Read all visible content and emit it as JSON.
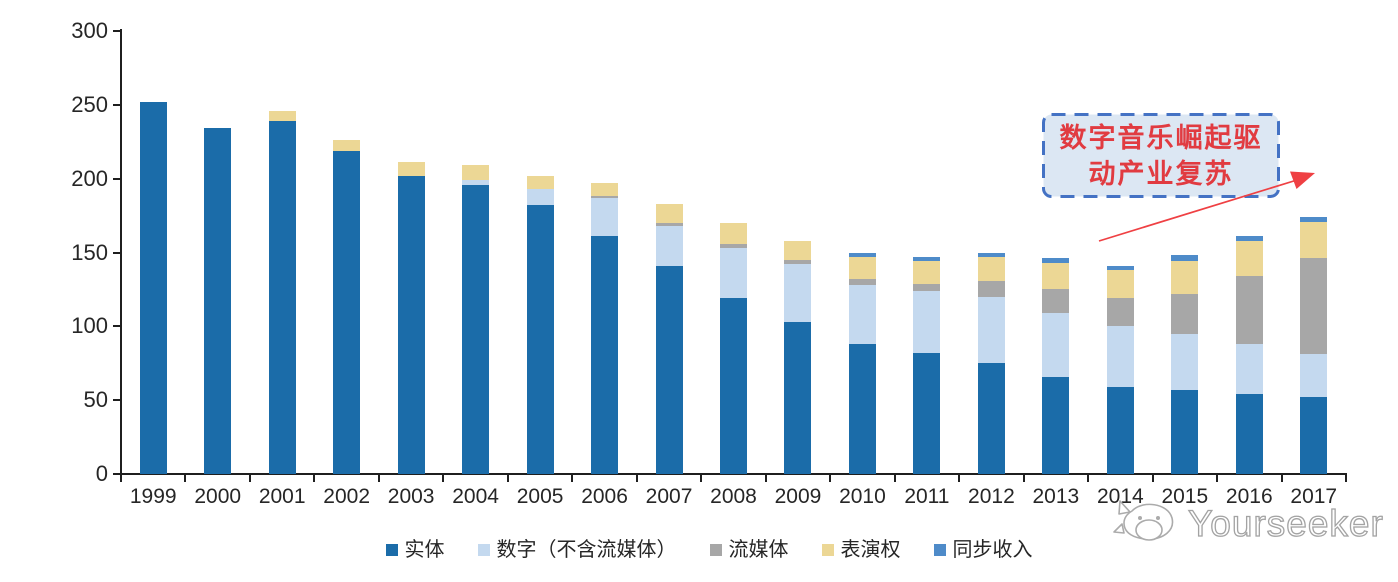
{
  "chart_data": {
    "type": "bar",
    "stacked": true,
    "title": "",
    "xlabel": "",
    "ylabel": "",
    "ylim": [
      0,
      300
    ],
    "yticks": [
      0,
      50,
      100,
      150,
      200,
      250,
      300
    ],
    "grid": false,
    "legend_position": "bottom",
    "categories": [
      "1999",
      "2000",
      "2001",
      "2002",
      "2003",
      "2004",
      "2005",
      "2006",
      "2007",
      "2008",
      "2009",
      "2010",
      "2011",
      "2012",
      "2013",
      "2014",
      "2015",
      "2016",
      "2017"
    ],
    "series": [
      {
        "name": "实体",
        "color": "#1B6CA9",
        "values": [
          252,
          234,
          239,
          219,
          202,
          196,
          182,
          161,
          141,
          119,
          103,
          88,
          82,
          75,
          66,
          59,
          57,
          54,
          52
        ]
      },
      {
        "name": "数字（不含流媒体）",
        "color": "#C4D9EF",
        "values": [
          0,
          0,
          0,
          0,
          0,
          3,
          11,
          26,
          27,
          34,
          39,
          40,
          42,
          45,
          43,
          41,
          38,
          34,
          29
        ]
      },
      {
        "name": "流媒体",
        "color": "#A7A7A7",
        "values": [
          0,
          0,
          0,
          0,
          0,
          0,
          0,
          1,
          2,
          3,
          3,
          4,
          5,
          11,
          16,
          19,
          27,
          46,
          65
        ]
      },
      {
        "name": "表演权",
        "color": "#ECD795",
        "values": [
          0,
          0,
          7,
          7,
          9,
          10,
          9,
          9,
          13,
          14,
          13,
          15,
          15,
          16,
          18,
          19,
          22,
          24,
          25
        ]
      },
      {
        "name": "同步收入",
        "color": "#4E8BC9",
        "values": [
          0,
          0,
          0,
          0,
          0,
          0,
          0,
          0,
          0,
          0,
          0,
          3,
          3,
          3,
          3,
          3,
          4,
          3,
          3
        ]
      }
    ]
  },
  "annotation": {
    "line1": "数字音乐崛起驱",
    "line2": "动产业复苏",
    "box_fill": "#DCE7F3",
    "box_border": "#4472C4",
    "text_color": "#E13B41",
    "arrow_color": "#EF4043"
  },
  "watermark": {
    "text": "Yourseeker"
  },
  "colors": {
    "axis": "#1f1f1f",
    "labels": "#262626"
  }
}
